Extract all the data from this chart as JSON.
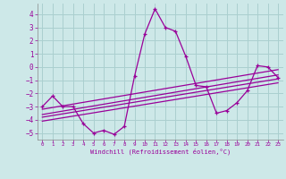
{
  "xlabel": "Windchill (Refroidissement éolien,°C)",
  "bg_color": "#cde8e8",
  "grid_color": "#aacfcf",
  "line_color": "#990099",
  "xlim": [
    -0.5,
    23.5
  ],
  "ylim": [
    -5.5,
    4.8
  ],
  "yticks": [
    -5,
    -4,
    -3,
    -2,
    -1,
    0,
    1,
    2,
    3,
    4
  ],
  "xticks": [
    0,
    1,
    2,
    3,
    4,
    5,
    6,
    7,
    8,
    9,
    10,
    11,
    12,
    13,
    14,
    15,
    16,
    17,
    18,
    19,
    20,
    21,
    22,
    23
  ],
  "main_x": [
    0,
    1,
    2,
    3,
    4,
    5,
    6,
    7,
    8,
    9,
    10,
    11,
    12,
    13,
    14,
    15,
    16,
    17,
    18,
    19,
    20,
    21,
    22,
    23
  ],
  "main_y": [
    -3.0,
    -2.2,
    -3.0,
    -3.0,
    -4.3,
    -5.0,
    -4.8,
    -5.1,
    -4.5,
    -0.7,
    2.5,
    4.4,
    3.0,
    2.7,
    0.8,
    -1.4,
    -1.5,
    -3.5,
    -3.3,
    -2.7,
    -1.8,
    0.1,
    0.0,
    -0.8
  ],
  "trend1_x": [
    0,
    23
  ],
  "trend1_y": [
    -3.6,
    -0.6
  ],
  "trend2_x": [
    0,
    23
  ],
  "trend2_y": [
    -3.8,
    -0.9
  ],
  "trend3_x": [
    0,
    23
  ],
  "trend3_y": [
    -4.1,
    -1.2
  ],
  "trend4_x": [
    0,
    23
  ],
  "trend4_y": [
    -3.2,
    -0.2
  ]
}
